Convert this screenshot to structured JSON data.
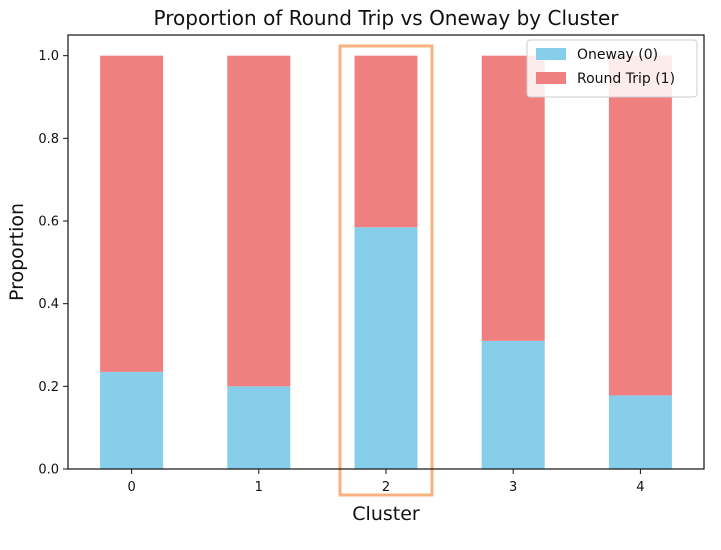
{
  "chart_data": {
    "type": "bar",
    "stacked": true,
    "title": "Proportion of Round Trip vs Oneway by Cluster",
    "xlabel": "Cluster",
    "ylabel": "Proportion",
    "categories": [
      "0",
      "1",
      "2",
      "3",
      "4"
    ],
    "series": [
      {
        "name": "Oneway (0)",
        "color": "#87ceeb",
        "values": [
          0.235,
          0.2,
          0.585,
          0.31,
          0.178
        ]
      },
      {
        "name": "Round Trip (1)",
        "color": "#f08080",
        "values": [
          0.765,
          0.8,
          0.415,
          0.69,
          0.822
        ]
      }
    ],
    "ylim": [
      0,
      1.05
    ],
    "yticks": [
      "0.0",
      "0.2",
      "0.4",
      "0.6",
      "0.8",
      "1.0"
    ],
    "legend_position": "top-right",
    "highlight": {
      "category": "2",
      "color": "#f9b27f"
    },
    "grid": false
  }
}
